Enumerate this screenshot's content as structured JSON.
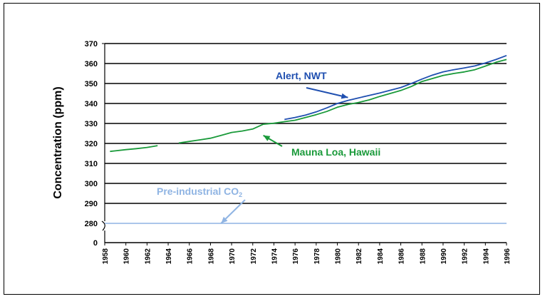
{
  "chart_data": {
    "type": "line",
    "ylabel": "Concentration (ppm)",
    "xlabel": "",
    "yticks": [
      0,
      280,
      290,
      300,
      310,
      320,
      330,
      340,
      350,
      360,
      370
    ],
    "ylim": [
      280,
      370
    ],
    "axis_break": true,
    "xlim": [
      1958,
      1996
    ],
    "xticks": [
      1958,
      1960,
      1962,
      1964,
      1966,
      1968,
      1970,
      1972,
      1974,
      1976,
      1978,
      1980,
      1982,
      1984,
      1986,
      1988,
      1990,
      1992,
      1994,
      1996
    ],
    "grid": "horizontal",
    "series": [
      {
        "name": "Mauna Loa, Hawaii",
        "color": "#1a9a3a",
        "segments": [
          [
            [
              1958.5,
              316.0
            ],
            [
              1959,
              316.3
            ],
            [
              1960,
              316.9
            ],
            [
              1961,
              317.4
            ],
            [
              1962,
              318.0
            ],
            [
              1963,
              318.9
            ]
          ],
          [
            [
              1965,
              320.2
            ],
            [
              1966,
              321.0
            ],
            [
              1967,
              321.8
            ],
            [
              1968,
              322.6
            ],
            [
              1969,
              324.0
            ],
            [
              1970,
              325.5
            ],
            [
              1971,
              326.2
            ],
            [
              1972,
              327.2
            ],
            [
              1973,
              329.6
            ],
            [
              1974,
              330.1
            ],
            [
              1975,
              330.9
            ],
            [
              1976,
              331.6
            ],
            [
              1977,
              333.0
            ],
            [
              1978,
              334.4
            ],
            [
              1979,
              336.0
            ],
            [
              1980,
              338.1
            ],
            [
              1981,
              339.5
            ],
            [
              1982,
              340.5
            ],
            [
              1983,
              341.8
            ],
            [
              1984,
              343.5
            ],
            [
              1985,
              345.0
            ],
            [
              1986,
              346.5
            ],
            [
              1987,
              348.5
            ],
            [
              1988,
              351.0
            ],
            [
              1989,
              352.5
            ],
            [
              1990,
              354.0
            ],
            [
              1991,
              355.0
            ],
            [
              1992,
              355.8
            ],
            [
              1993,
              356.9
            ],
            [
              1994,
              358.7
            ],
            [
              1995,
              360.6
            ],
            [
              1996,
              362.0
            ]
          ]
        ]
      },
      {
        "name": "Alert, NWT",
        "color": "#1f4fb0",
        "segments": [
          [
            [
              1975,
              332.0
            ],
            [
              1976,
              333.0
            ],
            [
              1977,
              334.2
            ],
            [
              1978,
              335.8
            ],
            [
              1979,
              337.8
            ],
            [
              1980,
              340.0
            ],
            [
              1981,
              341.5
            ],
            [
              1982,
              342.8
            ],
            [
              1983,
              344.0
            ],
            [
              1984,
              345.2
            ],
            [
              1985,
              346.6
            ],
            [
              1986,
              348.0
            ],
            [
              1987,
              350.0
            ],
            [
              1988,
              352.2
            ],
            [
              1989,
              354.2
            ],
            [
              1990,
              355.8
            ],
            [
              1991,
              356.9
            ],
            [
              1992,
              357.8
            ],
            [
              1993,
              358.8
            ],
            [
              1994,
              360.3
            ],
            [
              1995,
              362.0
            ],
            [
              1996,
              364.0
            ]
          ]
        ]
      },
      {
        "name": "Pre-industrial CO2",
        "color": "#8fb4e3",
        "segments": [
          [
            [
              1958,
              280
            ],
            [
              1996,
              280
            ]
          ]
        ]
      }
    ],
    "annotations": [
      {
        "text": "Alert, NWT",
        "color": "#1f4fb0",
        "target": [
          1981,
          343
        ]
      },
      {
        "text": "Mauna Loa, Hawaii",
        "color": "#1a9a3a",
        "target": [
          1973,
          324
        ]
      },
      {
        "text": "Pre-industrial CO",
        "subscript": "2",
        "color": "#8fb4e3",
        "target": [
          1969,
          280
        ]
      }
    ]
  }
}
